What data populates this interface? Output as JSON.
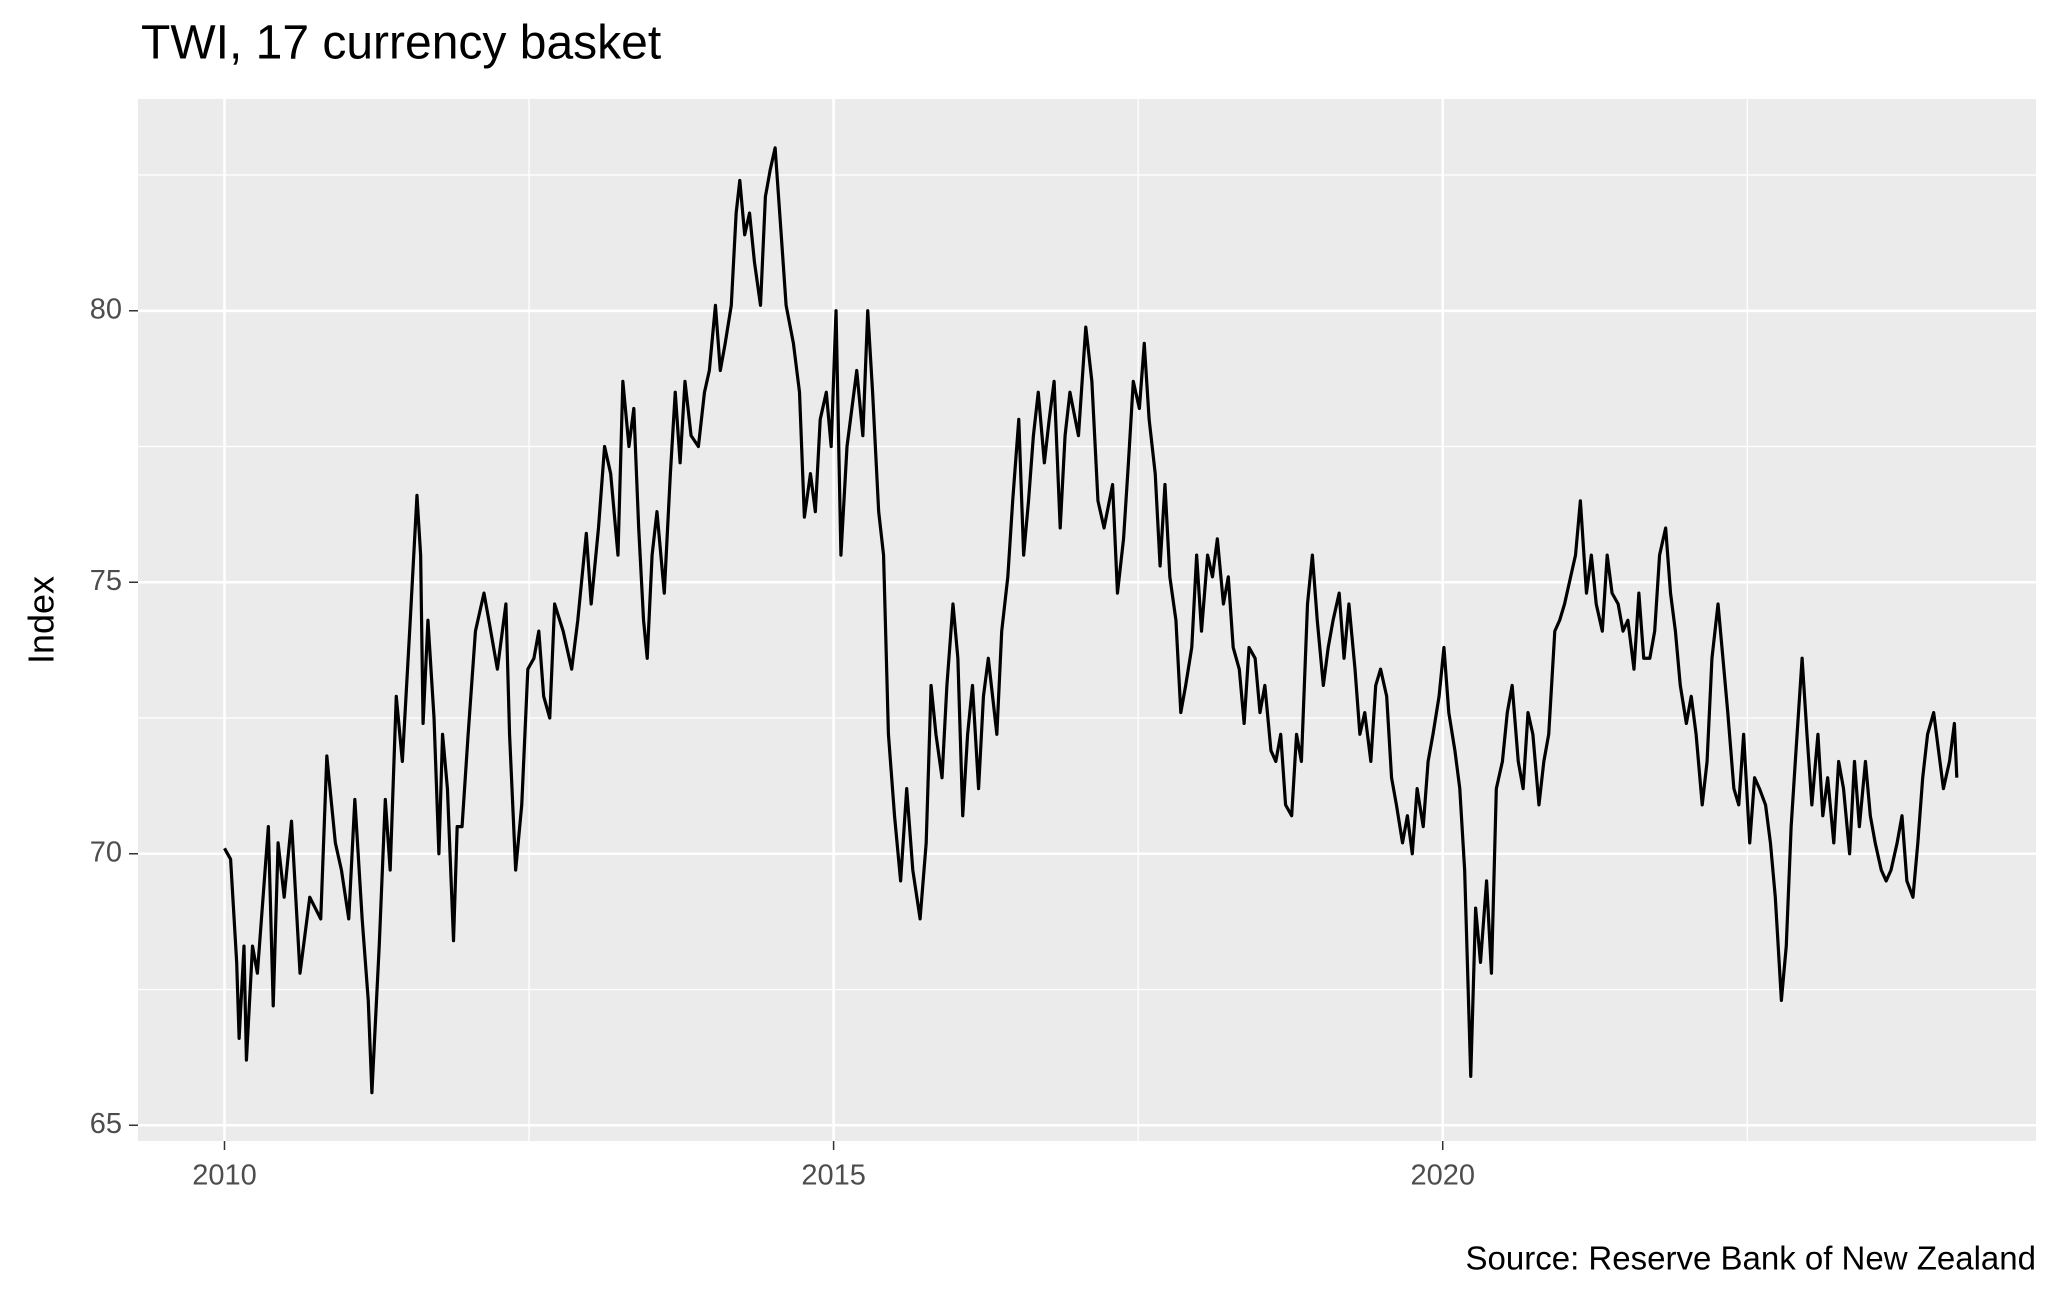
{
  "chart_data": {
    "type": "line",
    "title": "TWI, 17 currency basket",
    "y_label": "Index",
    "caption": "Source: Reserve Bank of New Zealand",
    "grid": true,
    "xlim": [
      2009.29,
      2024.87
    ],
    "ylim": [
      64.71,
      83.9
    ],
    "xticks": [
      2010,
      2015,
      2020
    ],
    "yticks": [
      65,
      70,
      75,
      80
    ],
    "xminor": [
      2012.5,
      2017.5,
      2022.5
    ],
    "yminor": [
      67.5,
      72.5,
      77.5,
      82.5
    ],
    "x": [
      2010.0,
      2010.05,
      2010.1,
      2010.12,
      2010.16,
      2010.18,
      2010.23,
      2010.27,
      2010.31,
      2010.36,
      2010.4,
      2010.44,
      2010.49,
      2010.55,
      2010.62,
      2010.7,
      2010.79,
      2010.84,
      2010.91,
      2010.96,
      2011.02,
      2011.07,
      2011.13,
      2011.18,
      2011.21,
      2011.27,
      2011.32,
      2011.36,
      2011.41,
      2011.46,
      2011.52,
      2011.58,
      2011.61,
      2011.63,
      2011.67,
      2011.72,
      2011.76,
      2011.79,
      2011.83,
      2011.88,
      2011.91,
      2011.95,
      2012.0,
      2012.06,
      2012.13,
      2012.17,
      2012.24,
      2012.31,
      2012.34,
      2012.39,
      2012.44,
      2012.49,
      2012.54,
      2012.58,
      2012.62,
      2012.67,
      2012.71,
      2012.78,
      2012.85,
      2012.9,
      2012.97,
      2013.01,
      2013.07,
      2013.12,
      2013.17,
      2013.23,
      2013.27,
      2013.32,
      2013.36,
      2013.4,
      2013.44,
      2013.47,
      2013.51,
      2013.55,
      2013.61,
      2013.66,
      2013.7,
      2013.74,
      2013.78,
      2013.83,
      2013.89,
      2013.94,
      2013.98,
      2014.03,
      2014.07,
      2014.11,
      2014.16,
      2014.2,
      2014.23,
      2014.27,
      2014.31,
      2014.35,
      2014.4,
      2014.44,
      2014.48,
      2014.52,
      2014.57,
      2014.61,
      2014.67,
      2014.72,
      2014.76,
      2014.81,
      2014.85,
      2014.89,
      2014.94,
      2014.98,
      2015.02,
      2015.06,
      2015.11,
      2015.15,
      2015.19,
      2015.24,
      2015.28,
      2015.32,
      2015.37,
      2015.41,
      2015.45,
      2015.5,
      2015.55,
      2015.6,
      2015.65,
      2015.71,
      2015.76,
      2015.8,
      2015.84,
      2015.89,
      2015.93,
      2015.98,
      2016.02,
      2016.06,
      2016.1,
      2016.14,
      2016.19,
      2016.23,
      2016.27,
      2016.34,
      2016.38,
      2016.43,
      2016.47,
      2016.52,
      2016.56,
      2016.6,
      2016.64,
      2016.68,
      2016.73,
      2016.77,
      2016.81,
      2016.86,
      2016.9,
      2016.94,
      2017.01,
      2017.07,
      2017.12,
      2017.17,
      2017.22,
      2017.29,
      2017.33,
      2017.38,
      2017.42,
      2017.46,
      2017.51,
      2017.55,
      2017.59,
      2017.64,
      2017.68,
      2017.72,
      2017.76,
      2017.81,
      2017.85,
      2017.89,
      2017.94,
      2017.98,
      2018.02,
      2018.07,
      2018.11,
      2018.15,
      2018.2,
      2018.24,
      2018.28,
      2018.33,
      2018.37,
      2018.41,
      2018.46,
      2018.5,
      2018.54,
      2018.59,
      2018.63,
      2018.67,
      2018.71,
      2018.76,
      2018.8,
      2018.84,
      2018.89,
      2018.93,
      2018.97,
      2019.02,
      2019.06,
      2019.1,
      2019.15,
      2019.19,
      2019.23,
      2019.28,
      2019.32,
      2019.36,
      2019.41,
      2019.45,
      2019.49,
      2019.54,
      2019.58,
      2019.62,
      2019.67,
      2019.71,
      2019.75,
      2019.79,
      2019.84,
      2019.88,
      2019.92,
      2019.97,
      2020.01,
      2020.05,
      2020.1,
      2020.14,
      2020.18,
      2020.23,
      2020.27,
      2020.31,
      2020.36,
      2020.4,
      2020.44,
      2020.49,
      2020.53,
      2020.57,
      2020.62,
      2020.66,
      2020.7,
      2020.74,
      2020.79,
      2020.83,
      2020.87,
      2020.92,
      2020.96,
      2021.0,
      2021.05,
      2021.09,
      2021.13,
      2021.18,
      2021.22,
      2021.26,
      2021.31,
      2021.35,
      2021.39,
      2021.44,
      2021.48,
      2021.52,
      2021.57,
      2021.61,
      2021.65,
      2021.7,
      2021.74,
      2021.78,
      2021.83,
      2021.87,
      2021.91,
      2021.95,
      2022.0,
      2022.04,
      2022.08,
      2022.13,
      2022.17,
      2022.21,
      2022.26,
      2022.3,
      2022.34,
      2022.39,
      2022.43,
      2022.47,
      2022.52,
      2022.56,
      2022.6,
      2022.65,
      2022.69,
      2022.73,
      2022.78,
      2022.82,
      2022.86,
      2022.9,
      2022.95,
      2022.99,
      2023.03,
      2023.08,
      2023.12,
      2023.16,
      2023.21,
      2023.25,
      2023.29,
      2023.34,
      2023.38,
      2023.42,
      2023.47,
      2023.51,
      2023.55,
      2023.6,
      2023.64,
      2023.68,
      2023.73,
      2023.77,
      2023.81,
      2023.86,
      2023.9,
      2023.94,
      2023.98,
      2024.03,
      2024.07,
      2024.11,
      2024.16,
      2024.2,
      2024.22
    ],
    "series": [
      {
        "name": "TWI",
        "color": "#000000",
        "values": [
          70.1,
          69.9,
          68.0,
          66.6,
          68.3,
          66.2,
          68.3,
          67.8,
          69.0,
          70.5,
          67.2,
          70.2,
          69.2,
          70.6,
          67.8,
          69.2,
          68.8,
          71.8,
          70.2,
          69.7,
          68.8,
          71.0,
          68.8,
          67.3,
          65.6,
          68.3,
          71.0,
          69.7,
          72.9,
          71.7,
          74.1,
          76.6,
          75.5,
          72.4,
          74.3,
          72.5,
          70.0,
          72.2,
          71.2,
          68.4,
          70.5,
          70.5,
          72.2,
          74.1,
          74.8,
          74.3,
          73.4,
          74.6,
          72.2,
          69.7,
          70.9,
          73.4,
          73.6,
          74.1,
          72.9,
          72.5,
          74.6,
          74.1,
          73.4,
          74.3,
          75.9,
          74.6,
          76.0,
          77.5,
          77.0,
          75.5,
          78.7,
          77.5,
          78.2,
          76.0,
          74.3,
          73.6,
          75.5,
          76.3,
          74.8,
          77.0,
          78.5,
          77.2,
          78.7,
          77.7,
          77.5,
          78.5,
          78.9,
          80.1,
          78.9,
          79.4,
          80.1,
          81.8,
          82.4,
          81.4,
          81.8,
          80.9,
          80.1,
          82.1,
          82.6,
          83.0,
          81.4,
          80.1,
          79.4,
          78.5,
          76.2,
          77.0,
          76.3,
          78.0,
          78.5,
          77.5,
          80.0,
          75.5,
          77.5,
          78.2,
          78.9,
          77.7,
          80.0,
          78.5,
          76.3,
          75.5,
          72.2,
          70.7,
          69.5,
          71.2,
          69.7,
          68.8,
          70.2,
          73.1,
          72.2,
          71.4,
          73.1,
          74.6,
          73.6,
          70.7,
          72.2,
          73.1,
          71.2,
          72.9,
          73.6,
          72.2,
          74.1,
          75.1,
          76.5,
          78.0,
          75.5,
          76.5,
          77.7,
          78.5,
          77.2,
          78.0,
          78.7,
          76.0,
          77.7,
          78.5,
          77.7,
          79.7,
          78.7,
          76.5,
          76.0,
          76.8,
          74.8,
          75.8,
          77.2,
          78.7,
          78.2,
          79.4,
          78.0,
          77.0,
          75.3,
          76.8,
          75.1,
          74.3,
          72.6,
          73.1,
          73.8,
          75.5,
          74.1,
          75.5,
          75.1,
          75.8,
          74.6,
          75.1,
          73.8,
          73.4,
          72.4,
          73.8,
          73.6,
          72.6,
          73.1,
          71.9,
          71.7,
          72.2,
          70.9,
          70.7,
          72.2,
          71.7,
          74.6,
          75.5,
          74.3,
          73.1,
          73.8,
          74.3,
          74.8,
          73.6,
          74.6,
          73.4,
          72.2,
          72.6,
          71.7,
          73.1,
          73.4,
          72.9,
          71.4,
          70.9,
          70.2,
          70.7,
          70.0,
          71.2,
          70.5,
          71.7,
          72.2,
          72.9,
          73.8,
          72.6,
          71.9,
          71.2,
          69.7,
          65.9,
          69.0,
          68.0,
          69.5,
          67.8,
          71.2,
          71.7,
          72.6,
          73.1,
          71.7,
          71.2,
          72.6,
          72.2,
          70.9,
          71.7,
          72.2,
          74.1,
          74.3,
          74.6,
          75.1,
          75.5,
          76.5,
          74.8,
          75.5,
          74.6,
          74.1,
          75.5,
          74.8,
          74.6,
          74.1,
          74.3,
          73.4,
          74.8,
          73.6,
          73.6,
          74.1,
          75.5,
          76.0,
          74.8,
          74.1,
          73.1,
          72.4,
          72.9,
          72.2,
          70.9,
          71.7,
          73.6,
          74.6,
          73.6,
          72.6,
          71.2,
          70.9,
          72.2,
          70.2,
          71.4,
          71.2,
          70.9,
          70.2,
          69.2,
          67.3,
          68.3,
          70.5,
          71.9,
          73.6,
          72.2,
          70.9,
          72.2,
          70.7,
          71.4,
          70.2,
          71.7,
          71.2,
          70.0,
          71.7,
          70.5,
          71.7,
          70.7,
          70.2,
          69.7,
          69.5,
          69.7,
          70.2,
          70.7,
          69.5,
          69.2,
          70.2,
          71.4,
          72.2,
          72.6,
          71.9,
          71.2,
          71.7,
          72.4,
          71.4
        ]
      }
    ]
  }
}
